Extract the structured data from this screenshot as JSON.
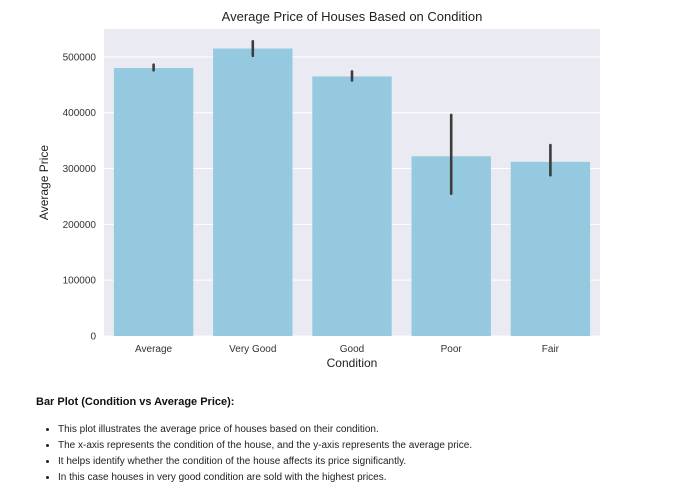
{
  "chart_data": {
    "type": "bar",
    "title": "Average Price of Houses Based on Condition",
    "xlabel": "Condition",
    "ylabel": "Average Price",
    "categories": [
      "Average",
      "Very Good",
      "Good",
      "Poor",
      "Fair"
    ],
    "values": [
      480000,
      515000,
      465000,
      322000,
      312000
    ],
    "error_low": [
      476000,
      502000,
      458000,
      255000,
      288000
    ],
    "error_high": [
      486000,
      528000,
      474000,
      396000,
      342000
    ],
    "ylim": [
      0,
      550000
    ],
    "yticks": [
      0,
      100000,
      200000,
      300000,
      400000,
      500000
    ],
    "ytick_labels": [
      "0",
      "100000",
      "200000",
      "300000",
      "400000",
      "500000"
    ],
    "grid": true,
    "colors": {
      "bar": "#95c9e0",
      "background": "#eaeaf2",
      "grid": "#ffffff",
      "errorbar": "#3d3d3d"
    }
  },
  "description": {
    "heading": "Bar Plot (Condition vs Average Price):",
    "bullets": [
      "This plot illustrates the average price of houses based on their condition.",
      "The x-axis represents the condition of the house, and the y-axis represents the average price.",
      "It helps identify whether the condition of the house affects its price significantly.",
      "In this case houses in very good condition are sold with the highest prices."
    ]
  }
}
